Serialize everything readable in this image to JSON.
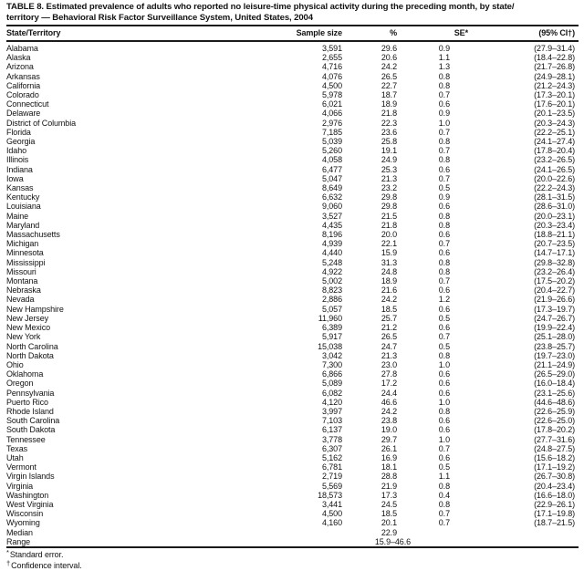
{
  "title_lines": [
    "TABLE 8. Estimated prevalence of adults who reported no leisure-time physical activity during the preceding month, by state/",
    "territory — Behavioral Risk Factor Surveillance System, United States, 2004"
  ],
  "table": {
    "columns": [
      "State/Territory",
      "Sample size",
      "%",
      "SE*",
      "(95% CI†)"
    ],
    "rows": [
      [
        "Alabama",
        "3,591",
        "29.6",
        "0.9",
        "(27.9–31.4)"
      ],
      [
        "Alaska",
        "2,655",
        "20.6",
        "1.1",
        "(18.4–22.8)"
      ],
      [
        "Arizona",
        "4,716",
        "24.2",
        "1.3",
        "(21.7–26.8)"
      ],
      [
        "Arkansas",
        "4,076",
        "26.5",
        "0.8",
        "(24.9–28.1)"
      ],
      [
        "California",
        "4,500",
        "22.7",
        "0.8",
        "(21.2–24.3)"
      ],
      [
        "Colorado",
        "5,978",
        "18.7",
        "0.7",
        "(17.3–20.1)"
      ],
      [
        "Connecticut",
        "6,021",
        "18.9",
        "0.6",
        "(17.6–20.1)"
      ],
      [
        "Delaware",
        "4,066",
        "21.8",
        "0.9",
        "(20.1–23.5)"
      ],
      [
        "District of Columbia",
        "2,976",
        "22.3",
        "1.0",
        "(20.3–24.3)"
      ],
      [
        "Florida",
        "7,185",
        "23.6",
        "0.7",
        "(22.2–25.1)"
      ],
      [
        "Georgia",
        "5,039",
        "25.8",
        "0.8",
        "(24.1–27.4)"
      ],
      [
        "Idaho",
        "5,260",
        "19.1",
        "0.7",
        "(17.8–20.4)"
      ],
      [
        "Illinois",
        "4,058",
        "24.9",
        "0.8",
        "(23.2–26.5)"
      ],
      [
        "Indiana",
        "6,477",
        "25.3",
        "0.6",
        "(24.1–26.5)"
      ],
      [
        "Iowa",
        "5,047",
        "21.3",
        "0.7",
        "(20.0–22.6)"
      ],
      [
        "Kansas",
        "8,649",
        "23.2",
        "0.5",
        "(22.2–24.3)"
      ],
      [
        "Kentucky",
        "6,632",
        "29.8",
        "0.9",
        "(28.1–31.5)"
      ],
      [
        "Louisiana",
        "9,060",
        "29.8",
        "0.6",
        "(28.6–31.0)"
      ],
      [
        "Maine",
        "3,527",
        "21.5",
        "0.8",
        "(20.0–23.1)"
      ],
      [
        "Maryland",
        "4,435",
        "21.8",
        "0.8",
        "(20.3–23.4)"
      ],
      [
        "Massachusetts",
        "8,196",
        "20.0",
        "0.6",
        "(18.8–21.1)"
      ],
      [
        "Michigan",
        "4,939",
        "22.1",
        "0.7",
        "(20.7–23.5)"
      ],
      [
        "Minnesota",
        "4,440",
        "15.9",
        "0.6",
        "(14.7–17.1)"
      ],
      [
        "Mississippi",
        "5,248",
        "31.3",
        "0.8",
        "(29.8–32.8)"
      ],
      [
        "Missouri",
        "4,922",
        "24.8",
        "0.8",
        "(23.2–26.4)"
      ],
      [
        "Montana",
        "5,002",
        "18.9",
        "0.7",
        "(17.5–20.2)"
      ],
      [
        "Nebraska",
        "8,823",
        "21.6",
        "0.6",
        "(20.4–22.7)"
      ],
      [
        "Nevada",
        "2,886",
        "24.2",
        "1.2",
        "(21.9–26.6)"
      ],
      [
        "New Hampshire",
        "5,057",
        "18.5",
        "0.6",
        "(17.3–19.7)"
      ],
      [
        "New Jersey",
        "11,960",
        "25.7",
        "0.5",
        "(24.7–26.7)"
      ],
      [
        "New Mexico",
        "6,389",
        "21.2",
        "0.6",
        "(19.9–22.4)"
      ],
      [
        "New York",
        "5,917",
        "26.5",
        "0.7",
        "(25.1–28.0)"
      ],
      [
        "North Carolina",
        "15,038",
        "24.7",
        "0.5",
        "(23.8–25.7)"
      ],
      [
        "North Dakota",
        "3,042",
        "21.3",
        "0.8",
        "(19.7–23.0)"
      ],
      [
        "Ohio",
        "7,300",
        "23.0",
        "1.0",
        "(21.1–24.9)"
      ],
      [
        "Oklahoma",
        "6,866",
        "27.8",
        "0.6",
        "(26.5–29.0)"
      ],
      [
        "Oregon",
        "5,089",
        "17.2",
        "0.6",
        "(16.0–18.4)"
      ],
      [
        "Pennsylvania",
        "6,082",
        "24.4",
        "0.6",
        "(23.1–25.6)"
      ],
      [
        "Puerto Rico",
        "4,120",
        "46.6",
        "1.0",
        "(44.6–48.6)"
      ],
      [
        "Rhode Island",
        "3,997",
        "24.2",
        "0.8",
        "(22.6–25.9)"
      ],
      [
        "South Carolina",
        "7,103",
        "23.8",
        "0.6",
        "(22.6–25.0)"
      ],
      [
        "South Dakota",
        "6,137",
        "19.0",
        "0.6",
        "(17.8–20.2)"
      ],
      [
        "Tennessee",
        "3,778",
        "29.7",
        "1.0",
        "(27.7–31.6)"
      ],
      [
        "Texas",
        "6,307",
        "26.1",
        "0.7",
        "(24.8–27.5)"
      ],
      [
        "Utah",
        "5,162",
        "16.9",
        "0.6",
        "(15.6–18.2)"
      ],
      [
        "Vermont",
        "6,781",
        "18.1",
        "0.5",
        "(17.1–19.2)"
      ],
      [
        "Virgin Islands",
        "2,719",
        "28.8",
        "1.1",
        "(26.7–30.8)"
      ],
      [
        "Virginia",
        "5,569",
        "21.9",
        "0.8",
        "(20.4–23.4)"
      ],
      [
        "Washington",
        "18,573",
        "17.3",
        "0.4",
        "(16.6–18.0)"
      ],
      [
        "West Virginia",
        "3,441",
        "24.5",
        "0.8",
        "(22.9–26.1)"
      ],
      [
        "Wisconsin",
        "4,500",
        "18.5",
        "0.7",
        "(17.1–19.8)"
      ],
      [
        "Wyoming",
        "4,160",
        "20.1",
        "0.7",
        "(18.7–21.5)"
      ]
    ],
    "summary_rows": [
      [
        "Median",
        "",
        "22.9",
        "",
        ""
      ],
      [
        "Range",
        "",
        "15.9–46.6",
        "",
        ""
      ]
    ]
  },
  "footnotes": [
    {
      "marker": "*",
      "text": "Standard error."
    },
    {
      "marker": "†",
      "text": "Confidence interval."
    }
  ]
}
